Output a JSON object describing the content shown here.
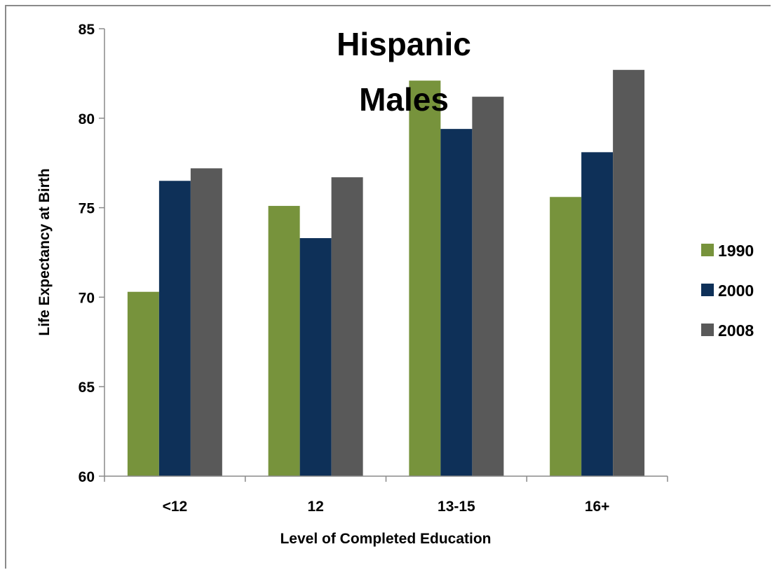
{
  "chart_data": {
    "type": "bar",
    "title_lines": [
      "Hispanic",
      "Males"
    ],
    "xlabel": "Level of Completed Education",
    "ylabel": "Life Expectancy at Birth",
    "categories": [
      "<12",
      "12",
      "13-15",
      "16+"
    ],
    "ylim": [
      60,
      85
    ],
    "yticks": [
      "60",
      "65",
      "70",
      "75",
      "80",
      "85"
    ],
    "grid": false,
    "legend_position": "right",
    "series": [
      {
        "name": "1990",
        "color": "#77933c",
        "values": [
          70.3,
          75.1,
          82.1,
          75.6
        ]
      },
      {
        "name": "2000",
        "color": "#0e3058",
        "values": [
          76.5,
          73.3,
          79.4,
          78.1
        ]
      },
      {
        "name": "2008",
        "color": "#595959",
        "values": [
          77.2,
          76.7,
          81.2,
          82.7
        ]
      }
    ]
  }
}
